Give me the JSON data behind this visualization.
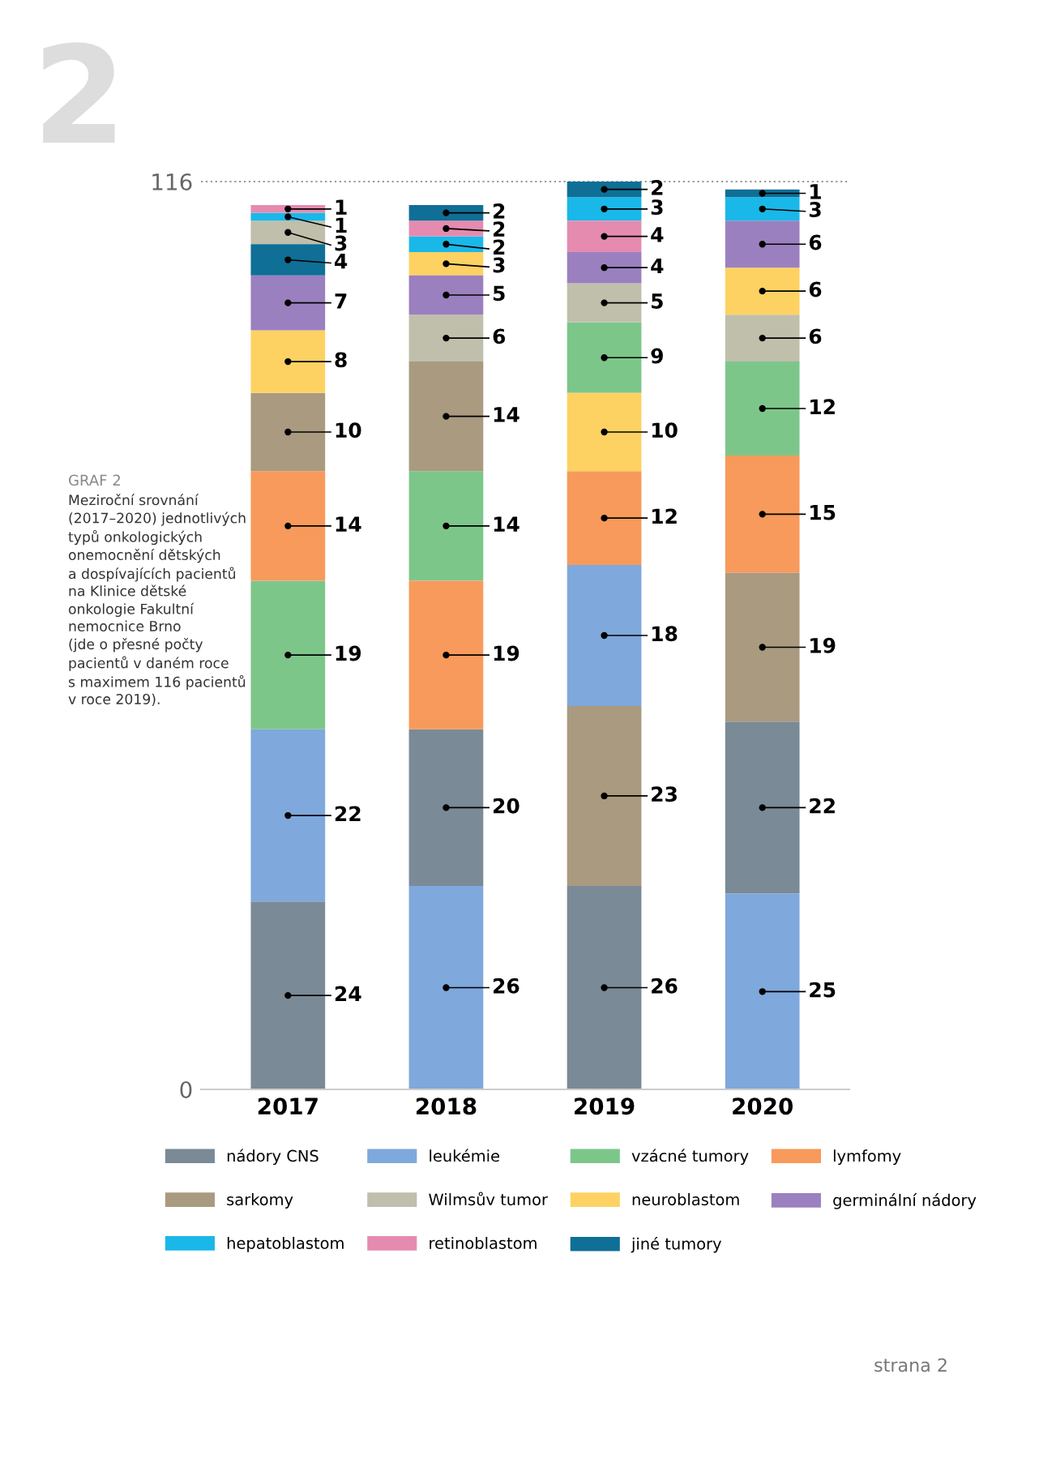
{
  "chart_data": {
    "type": "bar",
    "title": "GRAF 2",
    "subtitle": "Meziroční srovnání\n(2017–2020) jednotlivých\ntypů onkologických\nonemocnění dětských\na dospívajících pacientů\nna Klinice dětské\nonkologie Fakultní\nnemocnice Brno\n(jde o přesné počty\npacientů v daném roce\ns maximem 116 pacientů\nv roce 2019).",
    "categories": [
      "2017",
      "2018",
      "2019",
      "2020"
    ],
    "series": [
      {
        "name": "nádory CNS",
        "color": "#7a8a96",
        "values": [
          24,
          20,
          26,
          22
        ],
        "base": [
          0,
          26,
          0,
          25
        ]
      },
      {
        "name": "leukémie",
        "color": "#7fa8dc",
        "values": [
          22,
          26,
          18,
          25
        ],
        "base": [
          24,
          0,
          49,
          0
        ]
      },
      {
        "name": "vzácné tumory",
        "color": "#7dc68a",
        "values": [
          19,
          14,
          9,
          12
        ],
        "base": [
          46,
          65,
          89,
          81
        ]
      },
      {
        "name": "lymfomy",
        "color": "#f79a5b",
        "values": [
          14,
          19,
          12,
          15
        ],
        "base": [
          65,
          46,
          67,
          66
        ]
      },
      {
        "name": "sarkomy",
        "color": "#a99a80",
        "values": [
          10,
          14,
          23,
          19
        ],
        "base": [
          79,
          79,
          26,
          47
        ]
      },
      {
        "name": "Wilmsův tumor",
        "color": "#bfbfab",
        "values": [
          3,
          6,
          5,
          6
        ],
        "base": [
          108,
          93,
          98,
          93
        ]
      },
      {
        "name": "neuroblastom",
        "color": "#fdd262",
        "values": [
          8,
          3,
          10,
          6
        ],
        "base": [
          89,
          104,
          79,
          99
        ]
      },
      {
        "name": "germinální nádory",
        "color": "#9b80bf",
        "values": [
          7,
          5,
          4,
          6
        ],
        "base": [
          97,
          99,
          103,
          105
        ]
      },
      {
        "name": "hepatoblastom",
        "color": "#19b8e8",
        "values": [
          1,
          2,
          3,
          3
        ],
        "base": [
          111,
          107,
          111,
          111
        ]
      },
      {
        "name": "retinoblastom",
        "color": "#e58bb0",
        "values": [
          1,
          2,
          4,
          null
        ],
        "base": [
          112,
          109,
          107,
          null
        ]
      },
      {
        "name": "jiné tumory",
        "color": "#0f6f96",
        "values": [
          4,
          2,
          2,
          1
        ],
        "base": [
          104,
          111,
          114,
          114
        ]
      }
    ],
    "ylim": [
      0,
      116
    ],
    "yticks": [
      0,
      116
    ],
    "ref_lines": [
      {
        "axis": "y",
        "value": 116,
        "color": "#999999",
        "line_style": "dotted"
      }
    ],
    "data_labels": true,
    "legend": "bottom",
    "annotations": [
      "2",
      "strana 2"
    ]
  }
}
